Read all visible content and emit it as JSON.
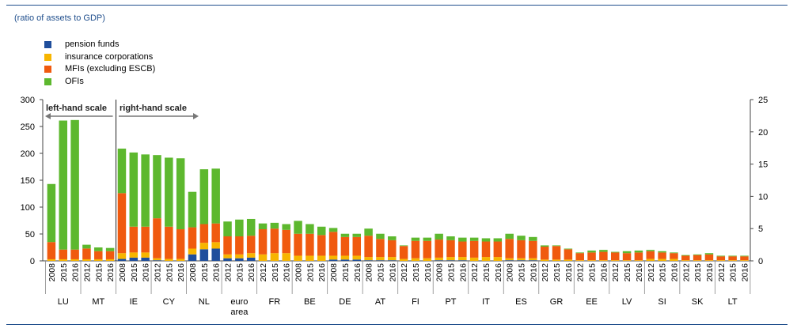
{
  "subtitle": "(ratio of assets to GDP)",
  "chart_data": {
    "type": "bar",
    "stacked": true,
    "series": [
      {
        "name": "pension funds",
        "color": "#1f4e9c"
      },
      {
        "name": "insurance corporations",
        "color": "#f7b500"
      },
      {
        "name": "MFIs (excluding ESCB)",
        "color": "#f05a0f"
      },
      {
        "name": "OFIs",
        "color": "#5db82e"
      }
    ],
    "left_axis": {
      "min": 0,
      "max": 300,
      "ticks": [
        "0",
        "50",
        "100",
        "150",
        "200",
        "250",
        "300"
      ]
    },
    "right_axis": {
      "min": 0,
      "max": 25,
      "ticks": [
        "0",
        "5",
        "10",
        "15",
        "20",
        "25"
      ]
    },
    "annotations": {
      "left_scale": "left-hand scale",
      "right_scale": "right-hand scale"
    },
    "groups": [
      {
        "label": "LU",
        "axis": "left",
        "years": [
          "2008",
          "2015",
          "2016"
        ],
        "values": [
          [
            0,
            3,
            32,
            108
          ],
          [
            0,
            3,
            18,
            240
          ],
          [
            0,
            3,
            18,
            241
          ]
        ]
      },
      {
        "label": "MT",
        "axis": "left",
        "years": [
          "2012",
          "2015",
          "2016"
        ],
        "values": [
          [
            0,
            3,
            20,
            7
          ],
          [
            0,
            3,
            15,
            7
          ],
          [
            0,
            3,
            15,
            6
          ]
        ]
      },
      {
        "label": "IE",
        "axis": "right",
        "years": [
          "2008",
          "2015",
          "2016"
        ],
        "values": [
          [
            0.3,
            0.9,
            9.3,
            6.9
          ],
          [
            0.5,
            0.8,
            4.0,
            11.5
          ],
          [
            0.5,
            0.8,
            4.0,
            11.2
          ]
        ]
      },
      {
        "label": "CY",
        "axis": "right",
        "years": [
          "2012",
          "2015",
          "2016"
        ],
        "values": [
          [
            0.1,
            0.3,
            6.2,
            9.8
          ],
          [
            0,
            0.3,
            5.0,
            10.7
          ],
          [
            0,
            0.3,
            4.6,
            11.0
          ]
        ]
      },
      {
        "label": "NL",
        "axis": "right",
        "years": [
          "2008",
          "2015",
          "2016"
        ],
        "values": [
          [
            1.0,
            0.9,
            3.3,
            5.5
          ],
          [
            1.8,
            1.0,
            2.9,
            8.5
          ],
          [
            1.9,
            1.0,
            2.9,
            8.5
          ]
        ]
      },
      {
        "label": "euro area",
        "axis": "right",
        "years": [
          "2012",
          "2015",
          "2016"
        ],
        "values": [
          [
            0.4,
            0.6,
            2.8,
            2.3
          ],
          [
            0.4,
            0.6,
            2.8,
            2.6
          ],
          [
            0.5,
            0.7,
            2.7,
            2.6
          ]
        ]
      },
      {
        "label": "FR",
        "axis": "right",
        "years": [
          "2012",
          "2015",
          "2016"
        ],
        "values": [
          [
            0,
            1.0,
            3.9,
            0.9
          ],
          [
            0,
            1.2,
            3.8,
            0.9
          ],
          [
            0,
            1.2,
            3.6,
            0.9
          ]
        ]
      },
      {
        "label": "BE",
        "axis": "right",
        "years": [
          "2008",
          "2015",
          "2016"
        ],
        "values": [
          [
            0,
            0.8,
            3.4,
            2.0
          ],
          [
            0,
            0.8,
            3.4,
            1.5
          ],
          [
            0,
            0.8,
            3.2,
            1.3
          ]
        ]
      },
      {
        "label": "DE",
        "axis": "right",
        "years": [
          "2008",
          "2015",
          "2016"
        ],
        "values": [
          [
            0.2,
            0.6,
            3.7,
            0.6
          ],
          [
            0.2,
            0.6,
            2.9,
            0.5
          ],
          [
            0.2,
            0.6,
            2.9,
            0.5
          ]
        ]
      },
      {
        "label": "AT",
        "axis": "right",
        "years": [
          "2008",
          "2015",
          "2016"
        ],
        "values": [
          [
            0.1,
            0.5,
            3.3,
            1.1
          ],
          [
            0.1,
            0.5,
            2.8,
            0.8
          ],
          [
            0.1,
            0.5,
            2.6,
            0.6
          ]
        ]
      },
      {
        "label": "FI",
        "axis": "right",
        "years": [
          "2012",
          "2015",
          "2016"
        ],
        "values": [
          [
            0,
            0.3,
            2.0,
            0.1
          ],
          [
            0,
            0.4,
            2.7,
            0.5
          ],
          [
            0,
            0.4,
            2.7,
            0.5
          ]
        ]
      },
      {
        "label": "PT",
        "axis": "right",
        "years": [
          "2008",
          "2015",
          "2016"
        ],
        "values": [
          [
            0.1,
            0.4,
            2.8,
            0.9
          ],
          [
            0.1,
            0.5,
            2.6,
            0.6
          ],
          [
            0.1,
            0.5,
            2.4,
            0.6
          ]
        ]
      },
      {
        "label": "IT",
        "axis": "right",
        "years": [
          "2012",
          "2015",
          "2016"
        ],
        "values": [
          [
            0,
            0.5,
            2.6,
            0.5
          ],
          [
            0,
            0.6,
            2.4,
            0.5
          ],
          [
            0,
            0.6,
            2.4,
            0.5
          ]
        ]
      },
      {
        "label": "ES",
        "axis": "right",
        "years": [
          "2008",
          "2015",
          "2016"
        ],
        "values": [
          [
            0.1,
            0.3,
            3.0,
            0.8
          ],
          [
            0.1,
            0.3,
            2.8,
            0.7
          ],
          [
            0.1,
            0.3,
            2.7,
            0.6
          ]
        ]
      },
      {
        "label": "GR",
        "axis": "right",
        "years": [
          "2012",
          "2015",
          "2016"
        ],
        "values": [
          [
            0,
            0.2,
            2.0,
            0.2
          ],
          [
            0,
            0.2,
            2.1,
            0.1
          ],
          [
            0,
            0.2,
            1.6,
            0.1
          ]
        ]
      },
      {
        "label": "EE",
        "axis": "right",
        "years": [
          "2012",
          "2015",
          "2016"
        ],
        "values": [
          [
            0,
            0.1,
            1.1,
            0.1
          ],
          [
            0,
            0.1,
            1.2,
            0.3
          ],
          [
            0,
            0.1,
            1.3,
            0.3
          ]
        ]
      },
      {
        "label": "LV",
        "axis": "right",
        "years": [
          "2012",
          "2015",
          "2016"
        ],
        "values": [
          [
            0,
            0.1,
            1.2,
            0.1
          ],
          [
            0,
            0.1,
            1.1,
            0.3
          ],
          [
            0,
            0.1,
            1.2,
            0.3
          ]
        ]
      },
      {
        "label": "SI",
        "axis": "right",
        "years": [
          "2012",
          "2015",
          "2016"
        ],
        "values": [
          [
            0,
            0.3,
            1.2,
            0.2
          ],
          [
            0,
            0.3,
            1.0,
            0.2
          ],
          [
            0,
            0.3,
            0.9,
            0.1
          ]
        ]
      },
      {
        "label": "SK",
        "axis": "right",
        "years": [
          "2012",
          "2015",
          "2016"
        ],
        "values": [
          [
            0,
            0.1,
            0.7,
            0.1
          ],
          [
            0,
            0.1,
            0.8,
            0.1
          ],
          [
            0,
            0.1,
            0.9,
            0.2
          ]
        ]
      },
      {
        "label": "LT",
        "axis": "right",
        "years": [
          "2012",
          "2015",
          "2016"
        ],
        "values": [
          [
            0,
            0.1,
            0.6,
            0.1
          ],
          [
            0,
            0.1,
            0.6,
            0.1
          ],
          [
            0,
            0.1,
            0.6,
            0.1
          ]
        ]
      }
    ]
  }
}
